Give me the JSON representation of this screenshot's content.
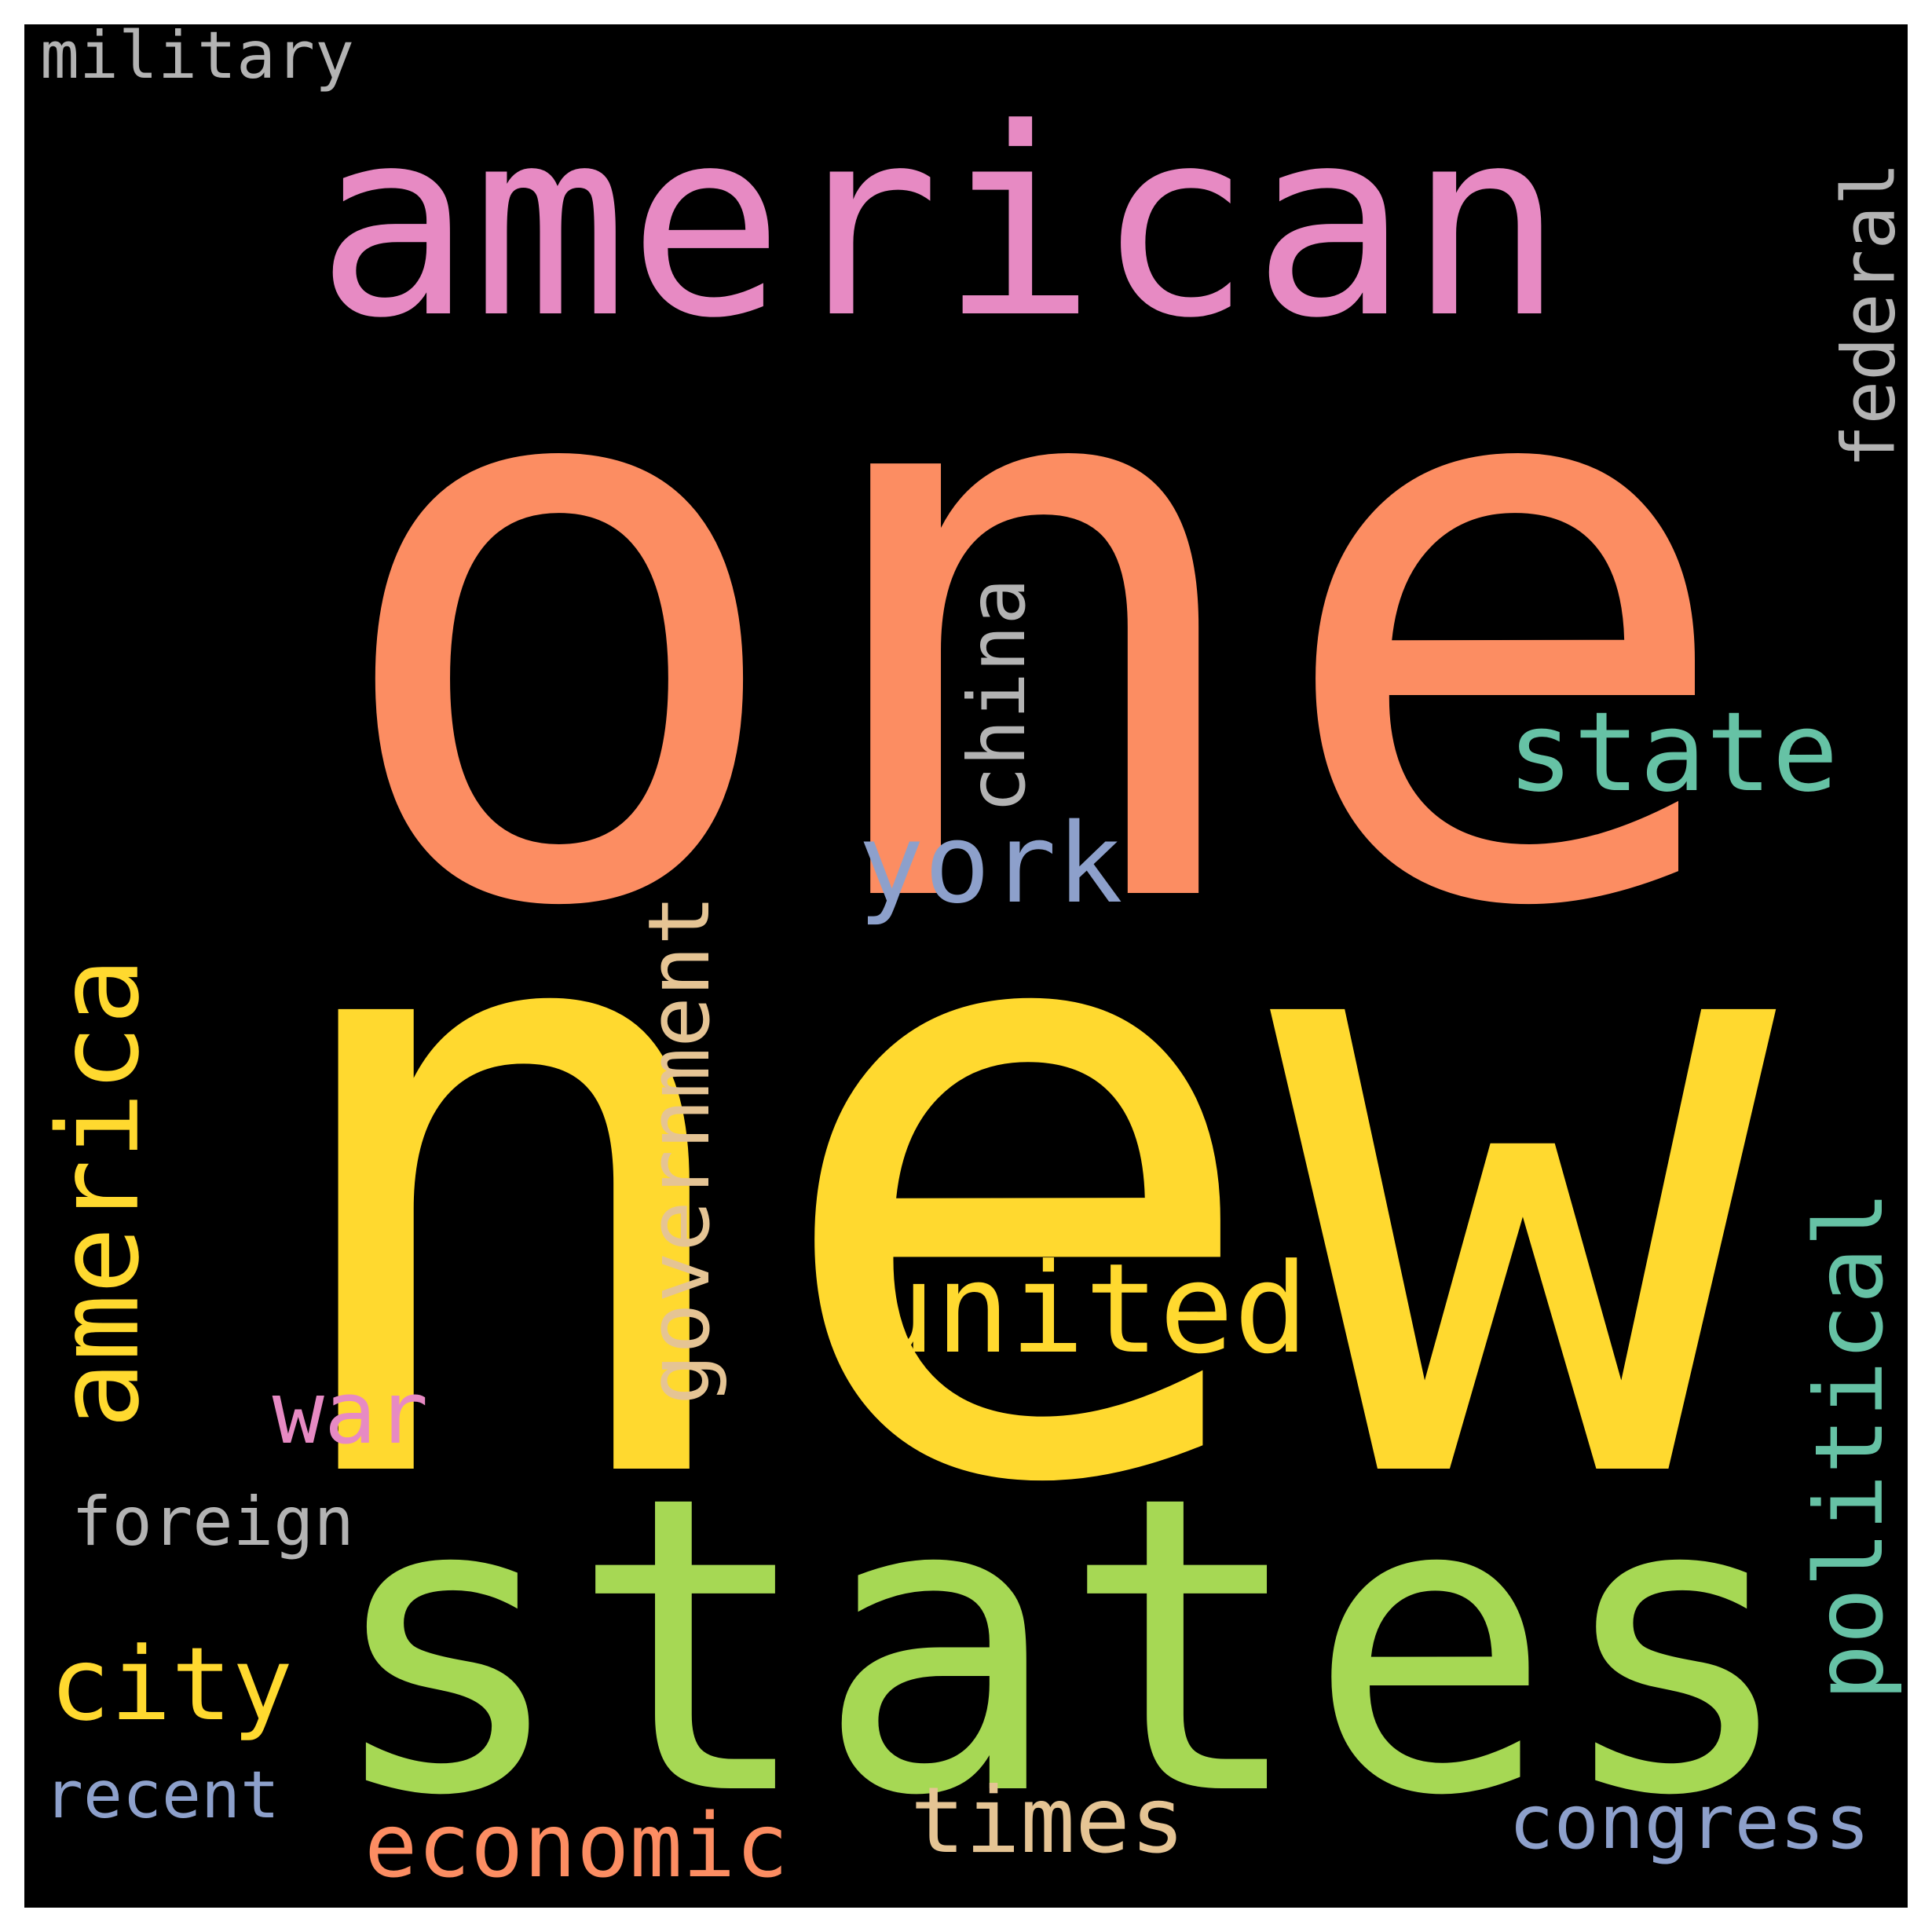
{
  "words": [
    {
      "text": "one",
      "color": "#fc8d62",
      "rotated": false
    },
    {
      "text": "new",
      "color": "#ffd92f",
      "rotated": false
    },
    {
      "text": "american",
      "color": "#e78ac3",
      "rotated": false
    },
    {
      "text": "states",
      "color": "#a6d854",
      "rotated": false
    },
    {
      "text": "united",
      "color": "#ffd92f",
      "rotated": false
    },
    {
      "text": "america",
      "color": "#ffd92f",
      "rotated": true
    },
    {
      "text": "state",
      "color": "#66c2a5",
      "rotated": false
    },
    {
      "text": "york",
      "color": "#8da0cb",
      "rotated": false
    },
    {
      "text": "government",
      "color": "#e5c494",
      "rotated": true
    },
    {
      "text": "political",
      "color": "#66c2a5",
      "rotated": true
    },
    {
      "text": "city",
      "color": "#ffd92f",
      "rotated": false
    },
    {
      "text": "economic",
      "color": "#fc8d62",
      "rotated": false
    },
    {
      "text": "china",
      "color": "#b3b3b3",
      "rotated": true
    },
    {
      "text": "times",
      "color": "#e5c494",
      "rotated": false
    },
    {
      "text": "federal",
      "color": "#b3b3b3",
      "rotated": true
    },
    {
      "text": "war",
      "color": "#e78ac3",
      "rotated": false
    },
    {
      "text": "congress",
      "color": "#8da0cb",
      "rotated": false
    },
    {
      "text": "foreign",
      "color": "#b3b3b3",
      "rotated": false
    },
    {
      "text": "recent",
      "color": "#8da0cb",
      "rotated": false
    },
    {
      "text": "military",
      "color": "#b3b3b3",
      "rotated": false
    }
  ]
}
